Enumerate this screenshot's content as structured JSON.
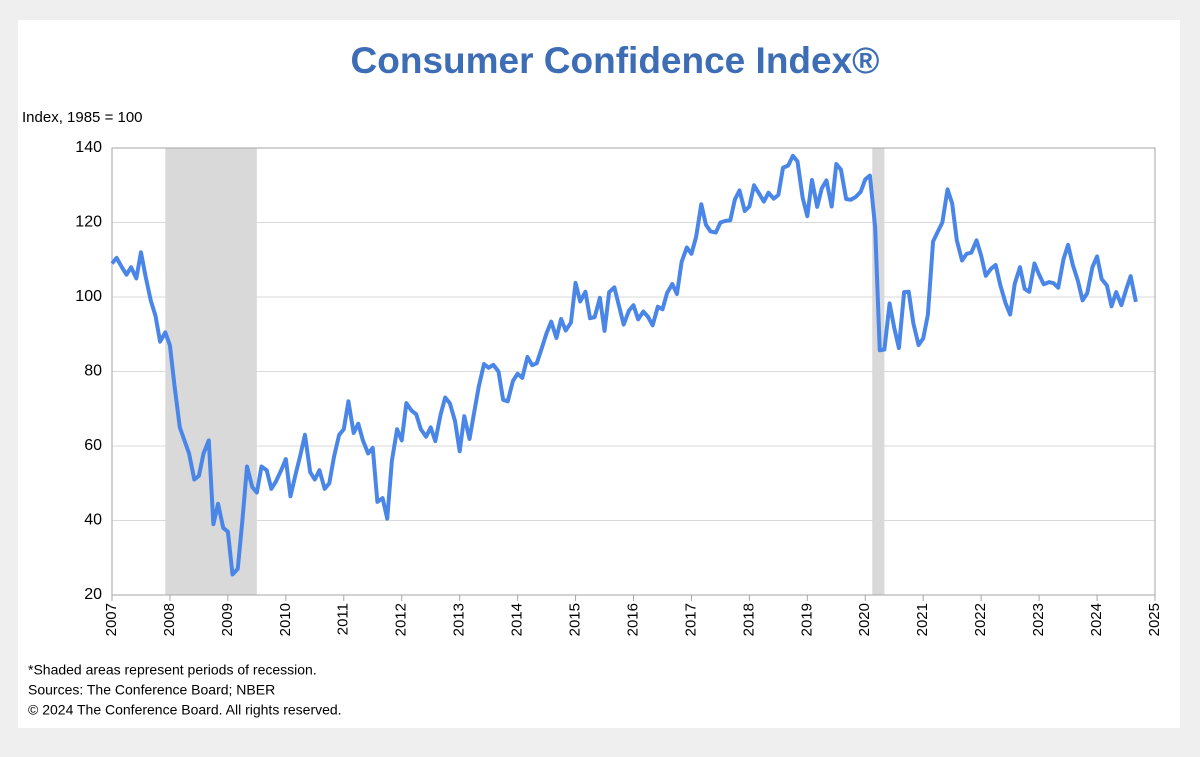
{
  "chart_data": {
    "type": "line",
    "title": "Consumer Confidence Index®",
    "y_label": "Index, 1985 = 100",
    "notes": [
      "*Shaded areas represent periods of recession.",
      "Sources: The Conference Board;  NBER",
      "© 2024 The Conference Board. All rights reserved."
    ],
    "xlim": [
      2007,
      2025
    ],
    "xticks": [
      2007,
      2008,
      2009,
      2010,
      2011,
      2012,
      2013,
      2014,
      2015,
      2016,
      2017,
      2018,
      2019,
      2020,
      2021,
      2022,
      2023,
      2024,
      2025
    ],
    "ylim": [
      20,
      140
    ],
    "yticks": [
      20,
      40,
      60,
      80,
      100,
      120,
      140
    ],
    "grid": true,
    "color": "#4a86e8",
    "recessions": [
      [
        2007.92,
        2009.5
      ],
      [
        2020.12,
        2020.33
      ]
    ],
    "x": [
      2007.0,
      2007.08,
      2007.17,
      2007.25,
      2007.33,
      2007.42,
      2007.5,
      2007.58,
      2007.67,
      2007.75,
      2007.83,
      2007.92,
      2008.0,
      2008.08,
      2008.17,
      2008.33,
      2008.42,
      2008.5,
      2008.58,
      2008.67,
      2008.75,
      2008.83,
      2008.92,
      2009.0,
      2009.08,
      2009.17,
      2009.25,
      2009.33,
      2009.42,
      2009.5,
      2009.58,
      2009.67,
      2009.75,
      2009.83,
      2009.92,
      2010.0,
      2010.08,
      2010.17,
      2010.25,
      2010.33,
      2010.42,
      2010.5,
      2010.58,
      2010.67,
      2010.75,
      2010.83,
      2010.92,
      2011.0,
      2011.08,
      2011.17,
      2011.25,
      2011.33,
      2011.42,
      2011.5,
      2011.58,
      2011.67,
      2011.75,
      2011.83,
      2011.92,
      2012.0,
      2012.08,
      2012.17,
      2012.25,
      2012.33,
      2012.42,
      2012.5,
      2012.58,
      2012.67,
      2012.75,
      2012.83,
      2012.92,
      2013.0,
      2013.08,
      2013.17,
      2013.25,
      2013.33,
      2013.42,
      2013.5,
      2013.58,
      2013.67,
      2013.75,
      2013.83,
      2013.92,
      2014.0,
      2014.08,
      2014.17,
      2014.25,
      2014.33,
      2014.42,
      2014.5,
      2014.58,
      2014.67,
      2014.75,
      2014.83,
      2014.92,
      2015.0,
      2015.08,
      2015.17,
      2015.25,
      2015.33,
      2015.42,
      2015.5,
      2015.58,
      2015.67,
      2015.75,
      2015.83,
      2015.92,
      2016.0,
      2016.08,
      2016.17,
      2016.25,
      2016.33,
      2016.42,
      2016.5,
      2016.58,
      2016.67,
      2016.75,
      2016.83,
      2016.92,
      2017.0,
      2017.08,
      2017.17,
      2017.25,
      2017.33,
      2017.42,
      2017.5,
      2017.58,
      2017.67,
      2017.75,
      2017.83,
      2017.92,
      2018.0,
      2018.08,
      2018.17,
      2018.25,
      2018.33,
      2018.42,
      2018.5,
      2018.58,
      2018.67,
      2018.75,
      2018.83,
      2018.92,
      2019.0,
      2019.08,
      2019.17,
      2019.25,
      2019.33,
      2019.42,
      2019.5,
      2019.58,
      2019.67,
      2019.75,
      2019.83,
      2019.92,
      2020.0,
      2020.08,
      2020.17,
      2020.25,
      2020.33,
      2020.42,
      2020.5,
      2020.58,
      2020.67,
      2020.75,
      2020.83,
      2020.92,
      2021.0,
      2021.08,
      2021.17,
      2021.25,
      2021.33,
      2021.42,
      2021.5,
      2021.58,
      2021.67,
      2021.75,
      2021.83,
      2021.92,
      2022.0,
      2022.08,
      2022.17,
      2022.25,
      2022.33,
      2022.42,
      2022.5,
      2022.58,
      2022.67,
      2022.75,
      2022.83,
      2022.92,
      2023.0,
      2023.08,
      2023.17,
      2023.25,
      2023.33,
      2023.42,
      2023.5,
      2023.58,
      2023.67,
      2023.75,
      2023.83,
      2023.92,
      2024.0,
      2024.08,
      2024.17,
      2024.25,
      2024.33,
      2024.42,
      2024.5,
      2024.58,
      2024.67
    ],
    "values": [
      109,
      110.5,
      108,
      106,
      108,
      105,
      112,
      105.5,
      99,
      95,
      88,
      90.5,
      87,
      76,
      65,
      58,
      51,
      52,
      58,
      61.5,
      39,
      44.5,
      38,
      37,
      25.5,
      27,
      40,
      54.5,
      49,
      47.5,
      54.5,
      53.5,
      48.5,
      50.5,
      53.5,
      56.5,
      46.5,
      52.5,
      57.5,
      63,
      53,
      51,
      53.5,
      48.5,
      50,
      57,
      63,
      64.5,
      72,
      63.5,
      66,
      61.5,
      58,
      59.5,
      45,
      46,
      40.5,
      56,
      64.5,
      61.5,
      71.5,
      69.5,
      68.5,
      64.5,
      62.5,
      65,
      61.3,
      68.4,
      73,
      71.5,
      66.7,
      58.6,
      68,
      61.9,
      69,
      76,
      82,
      81,
      81.8,
      80,
      72.4,
      72,
      77.5,
      79.4,
      78.3,
      83.9,
      81.7,
      82.2,
      86.4,
      90.3,
      93.4,
      89,
      94.1,
      91,
      93.1,
      103.8,
      98.8,
      101.4,
      94.3,
      94.6,
      99.8,
      90.9,
      101.3,
      102.6,
      97.6,
      92.6,
      96.3,
      97.8,
      94,
      96.1,
      94.7,
      92.4,
      97.4,
      96.7,
      101.1,
      103.5,
      100.8,
      109.4,
      113.3,
      111.6,
      116.1,
      124.9,
      119.4,
      117.6,
      117.3,
      120,
      120.4,
      120.6,
      126.2,
      128.6,
      123.1,
      124.3,
      130,
      127.7,
      125.6,
      128,
      126.4,
      127.4,
      134.7,
      135.3,
      137.9,
      136.4,
      126.6,
      121.7,
      131.4,
      124.2,
      129.2,
      131.3,
      124.3,
      135.7,
      134.2,
      126.3,
      126.1,
      126.8,
      128.2,
      131.6,
      132.6,
      118.8,
      85.7,
      85.9,
      98.3,
      91.7,
      86.3,
      101.3,
      101.4,
      92.9,
      87.1,
      88.9,
      95.2,
      114.9,
      117.5,
      120,
      128.9,
      125.1,
      115.2,
      109.8,
      111.6,
      111.9,
      115.2,
      111.1,
      105.7,
      107.6,
      108.6,
      103.2,
      98.4,
      95.3,
      103.6,
      108,
      102.2,
      101.4,
      109,
      106,
      103.4,
      104,
      103.7,
      102.5,
      110.1,
      114,
      108.7,
      104.3,
      99.1,
      101,
      108,
      110.9,
      104.8,
      103.1,
      97.5,
      101.3,
      97.8,
      101.9,
      105.6,
      98.7
    ]
  }
}
